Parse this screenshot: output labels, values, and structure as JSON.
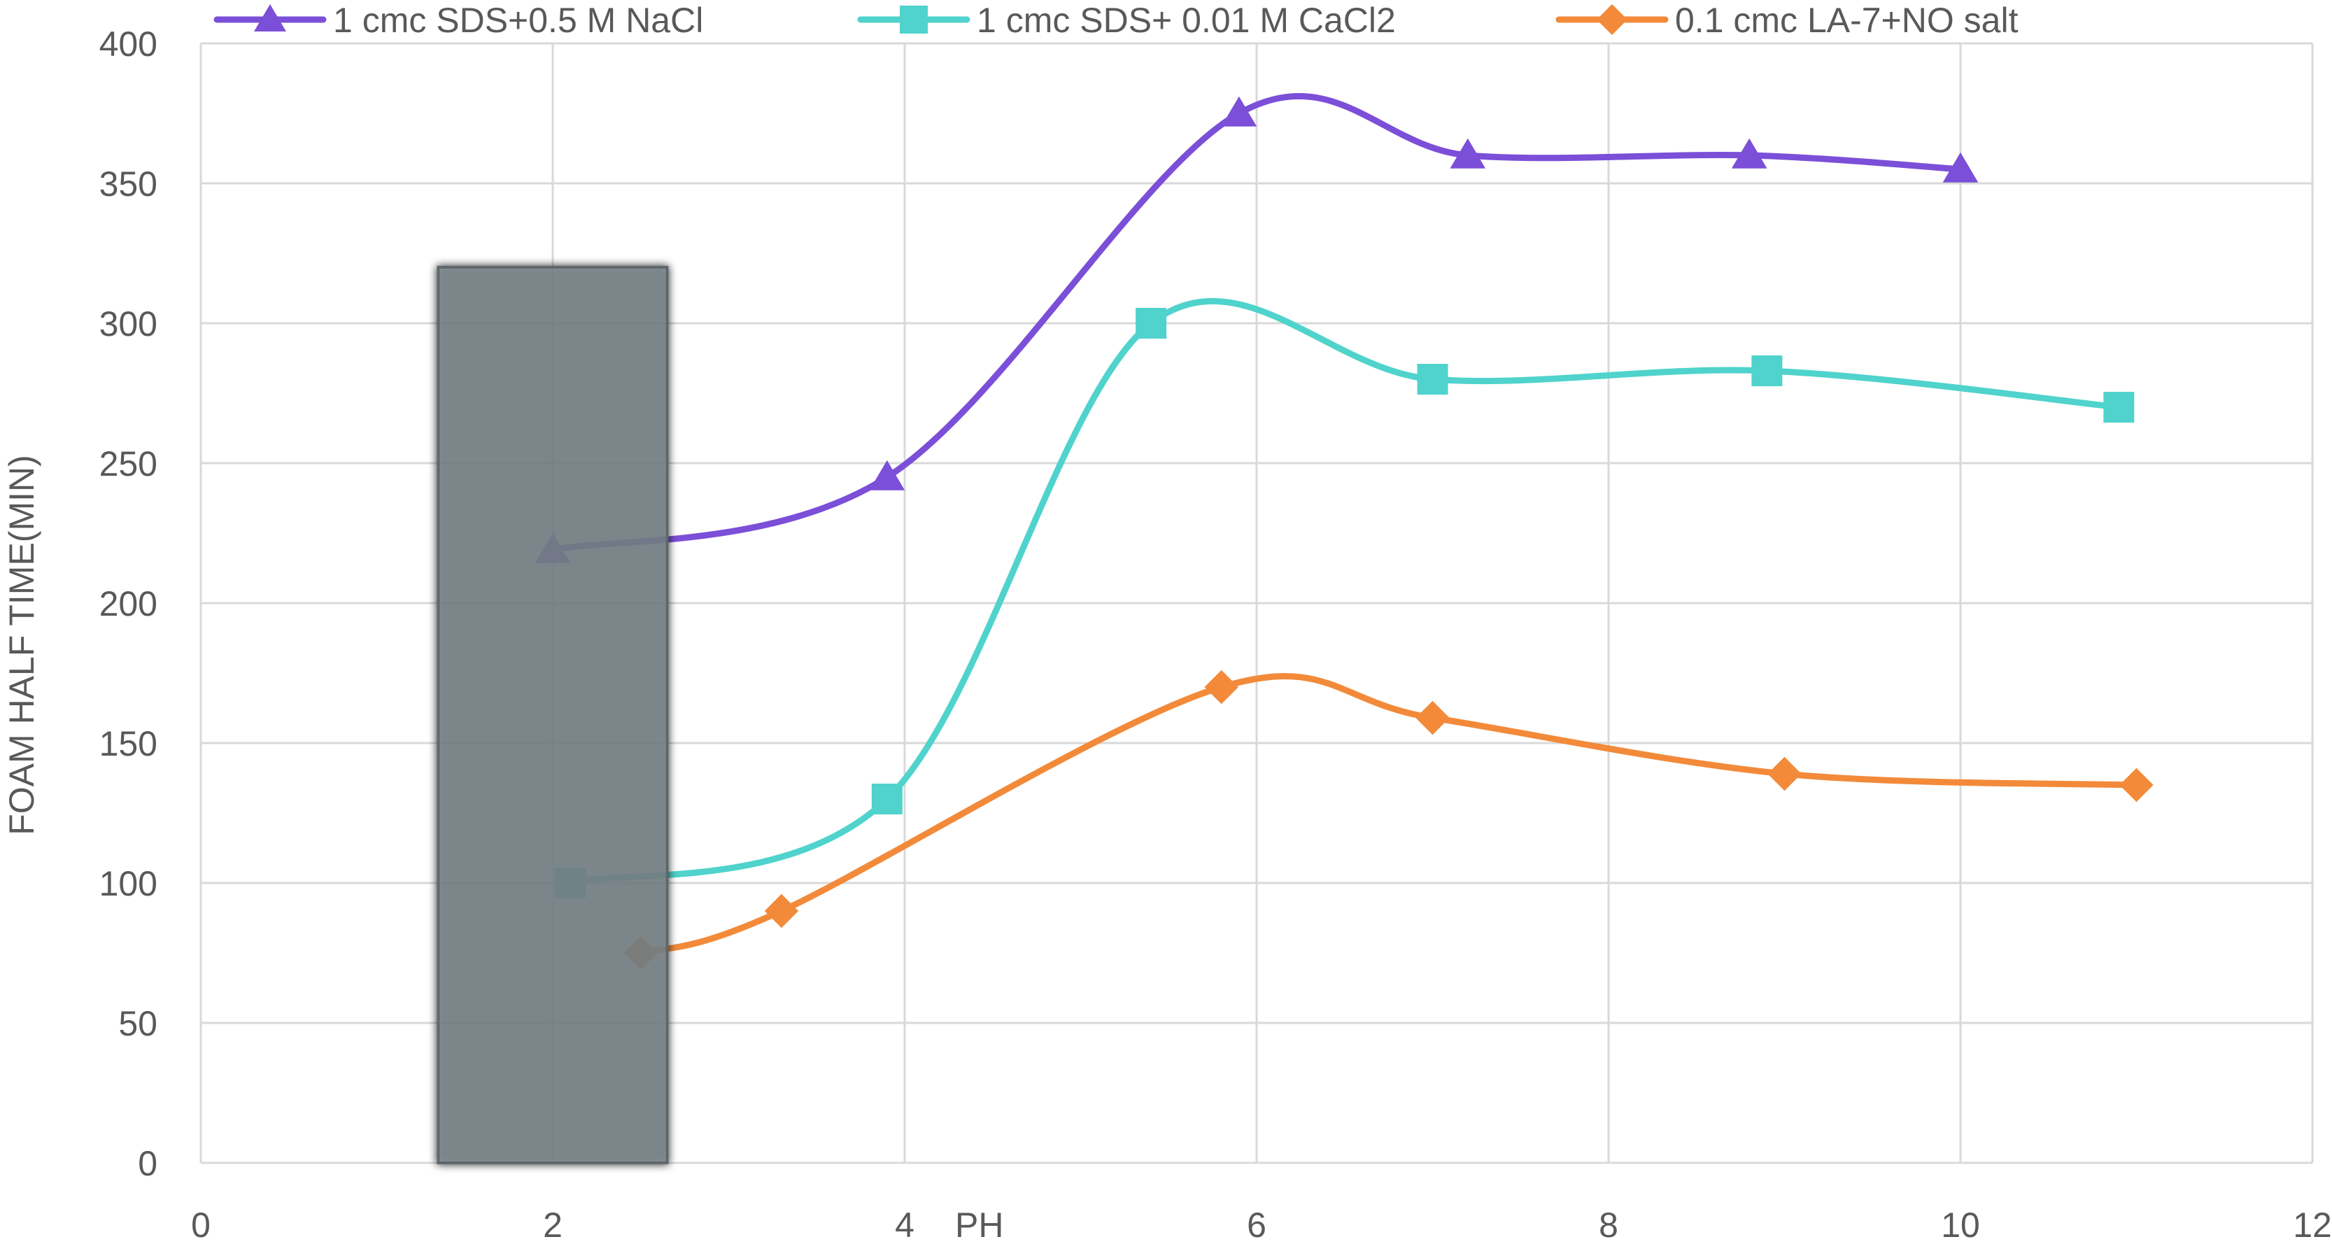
{
  "chart_data": {
    "type": "line",
    "title": "",
    "xlabel": "PH",
    "ylabel": "FOAM HALF TIME(MIN)",
    "xlim": [
      0,
      12
    ],
    "ylim": [
      0,
      400
    ],
    "x_ticks": [
      "0",
      "2",
      "4",
      "6",
      "8",
      "10",
      "12"
    ],
    "y_ticks": [
      "0",
      "50",
      "100",
      "150",
      "200",
      "250",
      "300",
      "350",
      "400"
    ],
    "grid": true,
    "legend_position": "top",
    "series": [
      {
        "name": "1 cmc SDS+0.5 M NaCl",
        "color": "#7B4FD8",
        "marker": "triangle",
        "points": [
          {
            "x": 2.0,
            "y": 219
          },
          {
            "x": 3.9,
            "y": 245
          },
          {
            "x": 5.9,
            "y": 375
          },
          {
            "x": 7.2,
            "y": 360
          },
          {
            "x": 8.8,
            "y": 360
          },
          {
            "x": 10.0,
            "y": 355
          }
        ]
      },
      {
        "name": "1 cmc SDS+ 0.01 M CaCl2",
        "color": "#4FD3CC",
        "marker": "square",
        "points": [
          {
            "x": 2.1,
            "y": 100
          },
          {
            "x": 3.9,
            "y": 130
          },
          {
            "x": 5.4,
            "y": 300
          },
          {
            "x": 7.0,
            "y": 280
          },
          {
            "x": 8.9,
            "y": 283
          },
          {
            "x": 10.9,
            "y": 270
          }
        ]
      },
      {
        "name": "0.1 cmc LA-7+NO salt",
        "color": "#F28A3A",
        "marker": "diamond",
        "points": [
          {
            "x": 2.5,
            "y": 75
          },
          {
            "x": 3.3,
            "y": 90
          },
          {
            "x": 5.8,
            "y": 170
          },
          {
            "x": 7.0,
            "y": 159
          },
          {
            "x": 9.0,
            "y": 139
          },
          {
            "x": 11.0,
            "y": 135
          }
        ]
      }
    ],
    "annotations": [
      {
        "type": "shaded-region",
        "x_range": [
          1.35,
          2.65
        ],
        "y_range": [
          0,
          320
        ],
        "color": "#7F8A90"
      }
    ]
  }
}
